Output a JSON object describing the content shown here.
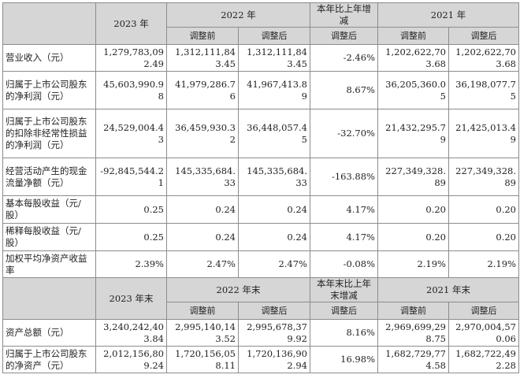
{
  "income": {
    "headers": {
      "y2023": "2023 年",
      "y2022": "2022 年",
      "change": "本年比上年增减",
      "y2021": "2021 年",
      "before": "调整前",
      "after": "调整后",
      "after_change": "调整后",
      "before_2021": "调整前",
      "after_2021": "调整后"
    },
    "rows": [
      {
        "label": "营业收入（元）",
        "v2023": "1,279,783,092.49",
        "v2022b": "1,312,111,843.45",
        "v2022a": "1,312,111,843.45",
        "chg": "-2.46%",
        "v2021b": "1,202,622,703.68",
        "v2021a": "1,202,622,703.68"
      },
      {
        "label": "归属于上市公司股东的净利润（元）",
        "v2023": "45,603,990.98",
        "v2022b": "41,979,286.76",
        "v2022a": "41,967,413.89",
        "chg": "8.67%",
        "v2021b": "36,205,360.05",
        "v2021a": "36,198,077.75"
      },
      {
        "label": "归属于上市公司股东的扣除非经常性损益的净利润（元）",
        "v2023": "24,529,004.43",
        "v2022b": "36,459,930.32",
        "v2022a": "36,448,057.45",
        "chg": "-32.70%",
        "v2021b": "21,432,295.79",
        "v2021a": "21,425,013.49"
      },
      {
        "label": "经营活动产生的现金流量净额（元）",
        "v2023": "-92,845,544.21",
        "v2022b": "145,335,684.33",
        "v2022a": "145,335,684.33",
        "chg": "-163.88%",
        "v2021b": "227,349,328.89",
        "v2021a": "227,349,328.89"
      },
      {
        "label": "基本每股收益（元/股）",
        "v2023": "0.25",
        "v2022b": "0.24",
        "v2022a": "0.24",
        "chg": "4.17%",
        "v2021b": "0.20",
        "v2021a": "0.20"
      },
      {
        "label": "稀释每股收益（元/股）",
        "v2023": "0.25",
        "v2022b": "0.24",
        "v2022a": "0.24",
        "chg": "4.17%",
        "v2021b": "0.20",
        "v2021a": "0.20"
      },
      {
        "label": "加权平均净资产收益率",
        "v2023": "2.39%",
        "v2022b": "2.47%",
        "v2022a": "2.47%",
        "chg": "-0.08%",
        "v2021b": "2.19%",
        "v2021a": "2.19%"
      }
    ]
  },
  "balance": {
    "headers": {
      "y2023": "2023 年末",
      "y2022": "2022 年末",
      "change": "本年末比上年末增减",
      "y2021": "2021 年末",
      "before": "调整前",
      "after": "调整后",
      "after_change": "调整后",
      "before_2021": "调整前",
      "after_2021": "调整后"
    },
    "rows": [
      {
        "label": "资产总额（元）",
        "v2023": "3,240,242,403.84",
        "v2022b": "2,995,140,143.52",
        "v2022a": "2,995,678,379.92",
        "chg": "8.16%",
        "v2021b": "2,969,699,298.75",
        "v2021a": "2,970,004,570.06"
      },
      {
        "label": "归属于上市公司股东的净资产（元）",
        "v2023": "2,012,156,809.24",
        "v2022b": "1,720,156,058.11",
        "v2022a": "1,720,136,902.94",
        "chg": "16.98%",
        "v2021b": "1,682,729,774.58",
        "v2021a": "1,682,722,492.28"
      }
    ]
  }
}
